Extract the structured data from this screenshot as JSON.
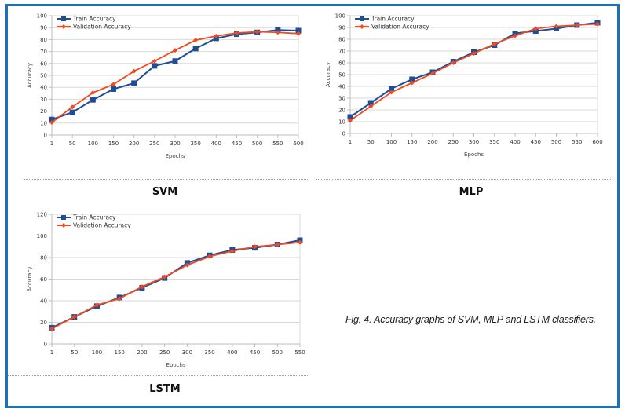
{
  "figure": {
    "caption": "Fig. 4. Accuracy graphs of SVM, MLP and LSTM classifiers.",
    "colors": {
      "train": "#1f4e96",
      "validation": "#f04a1e",
      "border": "#1a72b8",
      "grid": "#d9d9d9"
    }
  },
  "chart_data": [
    {
      "id": "svm",
      "type": "line",
      "label": "SVM",
      "title": "",
      "xlabel": "Epochs",
      "ylabel": "Accuracy",
      "categories": [
        "1",
        "50",
        "100",
        "150",
        "200",
        "250",
        "300",
        "350",
        "400",
        "450",
        "500",
        "550",
        "600"
      ],
      "ylim": [
        0,
        100
      ],
      "yticks": [
        0,
        10,
        20,
        30,
        40,
        50,
        60,
        70,
        80,
        90,
        100
      ],
      "grid": true,
      "legend": "top-left",
      "series": [
        {
          "name": "Train Accuracy",
          "marker": "square",
          "values": [
            13,
            19,
            29.5,
            38.5,
            43.5,
            58,
            62,
            72.5,
            81,
            84.5,
            86,
            88,
            87.5
          ]
        },
        {
          "name": "Validation Accuracy",
          "marker": "diamond",
          "values": [
            10.5,
            23.5,
            35.5,
            42.5,
            53.5,
            62,
            71,
            79.5,
            83,
            85.5,
            86.5,
            86,
            85
          ]
        }
      ]
    },
    {
      "id": "mlp",
      "type": "line",
      "label": "MLP",
      "title": "",
      "xlabel": "Epochs",
      "ylabel": "Accuracy",
      "categories": [
        "1",
        "50",
        "100",
        "150",
        "200",
        "250",
        "300",
        "350",
        "400",
        "450",
        "500",
        "550",
        "600"
      ],
      "ylim": [
        0,
        100
      ],
      "yticks": [
        0,
        10,
        20,
        30,
        40,
        50,
        60,
        70,
        80,
        90,
        100
      ],
      "grid": true,
      "legend": "top-left",
      "series": [
        {
          "name": "Train Accuracy",
          "marker": "square",
          "values": [
            14,
            26,
            38,
            46,
            52,
            61,
            69,
            75,
            85,
            87,
            89,
            92,
            94
          ]
        },
        {
          "name": "Validation Accuracy",
          "marker": "diamond",
          "values": [
            11,
            23,
            35,
            43,
            51,
            60,
            68,
            76,
            83,
            89,
            91,
            92,
            93
          ]
        }
      ]
    },
    {
      "id": "lstm",
      "type": "line",
      "label": "LSTM",
      "title": "",
      "xlabel": "Epochs",
      "ylabel": "Accuracy",
      "categories": [
        "1",
        "50",
        "100",
        "150",
        "200",
        "250",
        "300",
        "350",
        "400",
        "450",
        "500",
        "550"
      ],
      "ylim": [
        0,
        120
      ],
      "yticks": [
        0,
        20,
        40,
        60,
        80,
        100,
        120
      ],
      "grid": true,
      "legend": "top-left",
      "series": [
        {
          "name": "Train Accuracy",
          "marker": "square",
          "values": [
            15,
            25,
            35,
            43,
            52,
            61,
            75,
            82,
            87,
            89,
            92,
            96
          ]
        },
        {
          "name": "Validation Accuracy",
          "marker": "diamond",
          "values": [
            14,
            25,
            36,
            42,
            53,
            62,
            73,
            81,
            86,
            90,
            92,
            94
          ]
        }
      ]
    }
  ]
}
